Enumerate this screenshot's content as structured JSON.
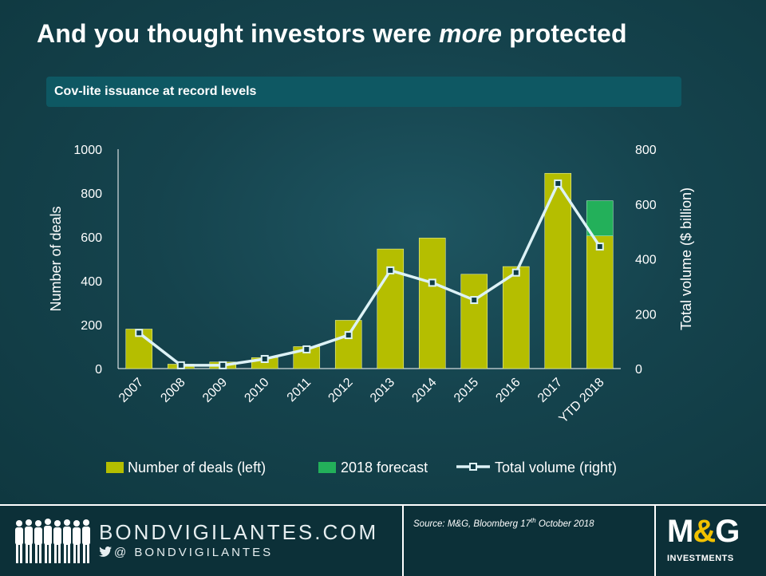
{
  "page": {
    "title_prefix": "And you thought investors were ",
    "title_emphasis": "more",
    "title_suffix": " protected",
    "subtitle": "Cov-lite issuance at record levels"
  },
  "colors": {
    "deals_bar": "#b5be00",
    "forecast_bar": "#23b05a",
    "volume_line": "#ddf2f6",
    "volume_marker_fill": "#0f3b45"
  },
  "chart_data": {
    "type": "bar",
    "categories": [
      "2007",
      "2008",
      "2009",
      "2010",
      "2011",
      "2012",
      "2013",
      "2014",
      "2015",
      "2016",
      "2017",
      "YTD 2018"
    ],
    "series": [
      {
        "name": "Number of deals (left)",
        "type": "bar",
        "axis": "left",
        "values": [
          180,
          20,
          30,
          50,
          100,
          220,
          545,
          595,
          430,
          465,
          890,
          605
        ]
      },
      {
        "name": "2018 forecast",
        "type": "bar",
        "axis": "left",
        "stacked_on": "Number of deals (left)",
        "values": [
          0,
          0,
          0,
          0,
          0,
          0,
          0,
          0,
          0,
          0,
          0,
          160
        ]
      },
      {
        "name": "Total volume (right)",
        "type": "line",
        "axis": "right",
        "values": [
          130,
          12,
          12,
          35,
          70,
          122,
          358,
          313,
          250,
          350,
          675,
          445
        ]
      }
    ],
    "ylabel": "Number  of deals",
    "y2label": "Total volume ($ billion)",
    "ylim": [
      0,
      1000
    ],
    "y2lim": [
      0,
      800
    ],
    "yticks": [
      "0",
      "200",
      "400",
      "600",
      "800",
      "1000"
    ],
    "y2ticks": [
      "0",
      "200",
      "400",
      "600",
      "800"
    ],
    "legend_position": "bottom",
    "grid": false
  },
  "footer": {
    "brand": "BONDVIGILANTES.COM",
    "handle": "@ BONDVIGILANTES",
    "source_prefix": "Source: M&G,  Bloomberg 17",
    "source_sup": "th",
    "source_suffix": " October 2018",
    "logo_m": "M",
    "logo_amp": "&",
    "logo_g": "G",
    "logo_sub": "INVESTMENTS"
  }
}
